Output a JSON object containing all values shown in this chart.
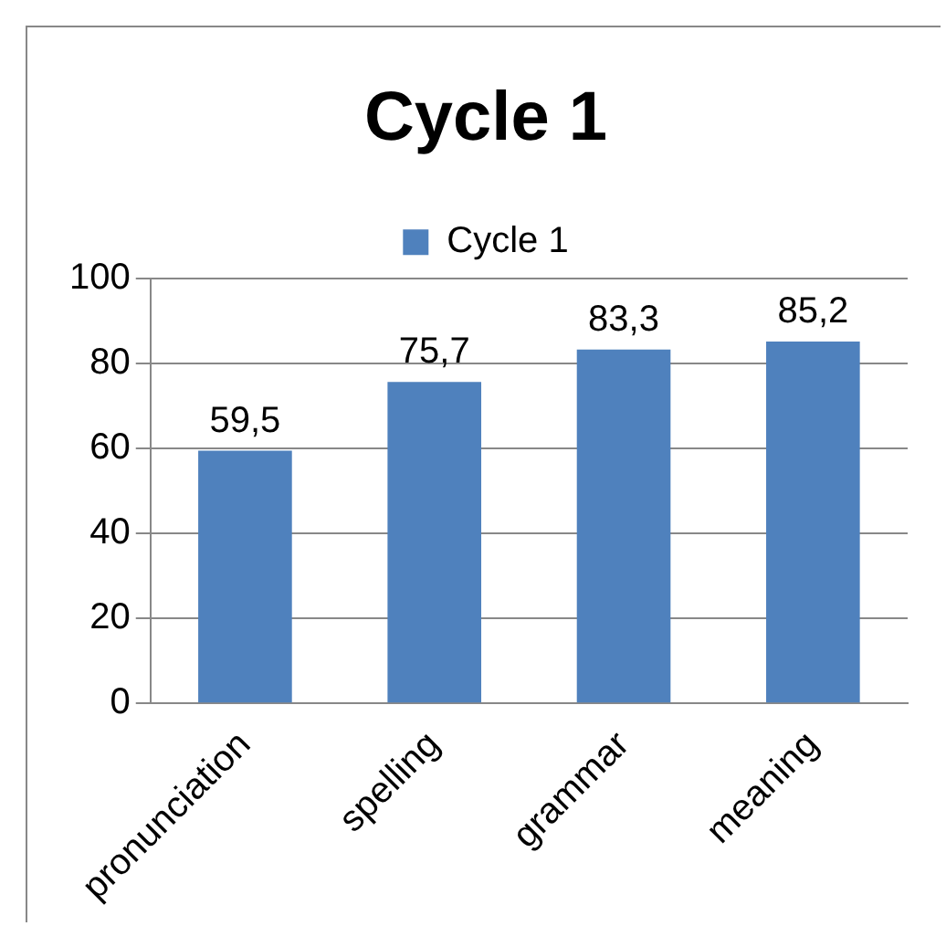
{
  "chart_data": {
    "type": "bar",
    "title": "Cycle 1",
    "categories": [
      "pronunciation",
      "spelling",
      "grammar",
      "meaning"
    ],
    "series": [
      {
        "name": "Cycle 1",
        "color": "#4f81bd",
        "values": [
          59.5,
          75.7,
          83.3,
          85.2
        ],
        "value_labels": [
          "59,5",
          "75,7",
          "83,3",
          "85,2"
        ]
      }
    ],
    "ylim": [
      0,
      100
    ],
    "yticks": [
      0,
      20,
      40,
      60,
      80,
      100
    ],
    "grid": "y",
    "legend": "top"
  }
}
